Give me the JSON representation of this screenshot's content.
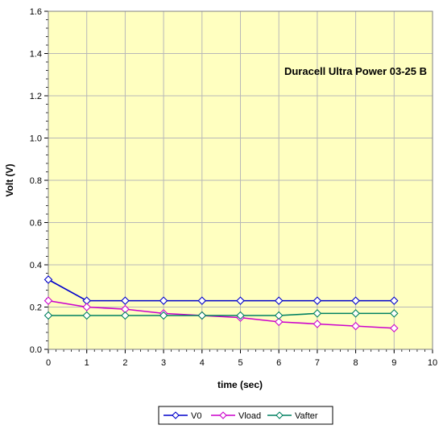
{
  "chart_data": {
    "type": "line",
    "annotation": "Duracell Ultra Power 03-25 B",
    "xlabel": "time (sec)",
    "ylabel": "Volt (V)",
    "xlim": [
      0,
      10
    ],
    "ylim": [
      0,
      1.6
    ],
    "x_ticks": [
      "0",
      "1",
      "2",
      "3",
      "4",
      "5",
      "6",
      "7",
      "8",
      "9",
      "10"
    ],
    "y_ticks": [
      "0.0",
      "0.2",
      "0.4",
      "0.6",
      "0.8",
      "1.0",
      "1.2",
      "1.4",
      "1.6"
    ],
    "grid": true,
    "legend_position": "bottom",
    "plot_background": "#FFFFC0",
    "x": [
      0,
      1,
      2,
      3,
      4,
      5,
      6,
      7,
      8,
      9
    ],
    "series": [
      {
        "name": "V0",
        "color": "#0000CC",
        "values": [
          0.33,
          0.23,
          0.23,
          0.23,
          0.23,
          0.23,
          0.23,
          0.23,
          0.23,
          0.23
        ]
      },
      {
        "name": "Vload",
        "color": "#CC00CC",
        "values": [
          0.23,
          0.2,
          0.19,
          0.17,
          0.16,
          0.15,
          0.13,
          0.12,
          0.11,
          0.1
        ]
      },
      {
        "name": "Vafter",
        "color": "#008060",
        "values": [
          0.16,
          0.16,
          0.16,
          0.16,
          0.16,
          0.16,
          0.16,
          0.17,
          0.17,
          0.17
        ]
      }
    ]
  }
}
